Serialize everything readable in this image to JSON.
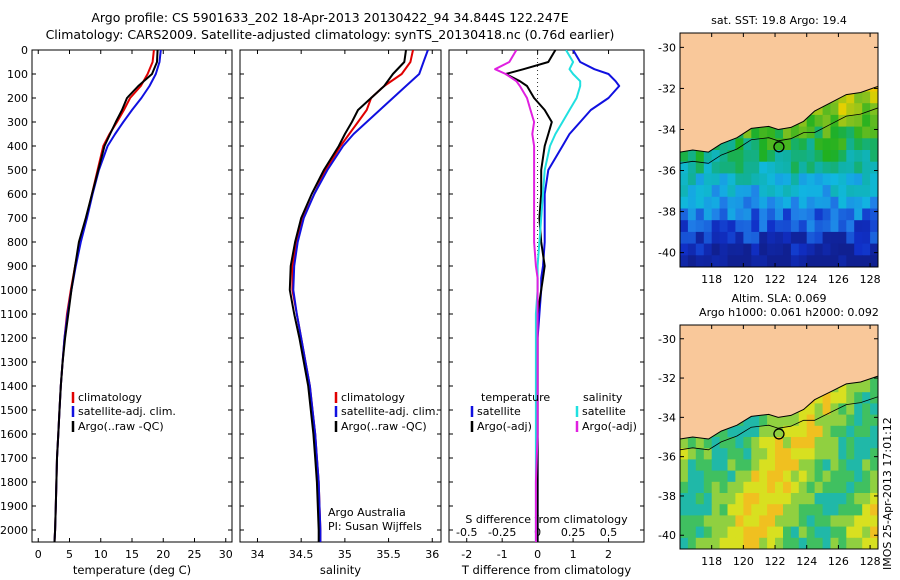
{
  "header": {
    "line1": "Argo profile: CS 5901633_202 18-Apr-2013 20130422_94 34.844S 122.247E",
    "line2": "Climatology: CARS2009. Satellite-adjusted climatology: synTS_20130418.nc (0.76d earlier)"
  },
  "colors": {
    "climatology": "#e00000",
    "satellite": "#1010e0",
    "argo": "#000000",
    "sat_s": "#20e0e0",
    "argo_s": "#e020e0",
    "land": "#f9c89a"
  },
  "legend_profile": {
    "climatology": "climatology",
    "satellite": "satellite-adj. clim.",
    "argo": "Argo(..raw -QC)"
  },
  "legend_diff": {
    "temperature": "temperature",
    "salinity": "salinity",
    "satellite": "satellite",
    "argo": "Argo(-adj)"
  },
  "annotations": {
    "argo_australia": "Argo Australia",
    "pi": "PI: Susan Wijffels",
    "sst_title": "sat. SST: 19.8  Argo: 19.4",
    "sla_line1": "Altim. SLA: 0.069",
    "sla_line2": "Argo h1000: 0.061 h2000: 0.092",
    "stamp": "IMOS 25-Apr-2013 17:01:12"
  },
  "chart_data": [
    {
      "type": "line",
      "xlabel": "temperature (deg C)",
      "xlim": [
        -1,
        31
      ],
      "ylim": [
        2050,
        0
      ],
      "xticks": [
        0,
        5,
        10,
        15,
        20,
        25,
        30
      ],
      "yticks": [
        0,
        100,
        200,
        300,
        400,
        500,
        600,
        700,
        800,
        900,
        1000,
        1100,
        1200,
        1300,
        1400,
        1500,
        1600,
        1700,
        1800,
        1900,
        2000
      ],
      "depth": [
        0,
        50,
        100,
        150,
        200,
        250,
        300,
        350,
        400,
        500,
        600,
        700,
        800,
        900,
        1000,
        1100,
        1200,
        1300,
        1400,
        1500,
        1600,
        1700,
        1800,
        1900,
        2000,
        2050
      ],
      "series": [
        {
          "name": "climatology",
          "key": "climatology",
          "values": [
            18.5,
            18.3,
            17.5,
            16.4,
            14.7,
            13.7,
            12.6,
            11.4,
            10.4,
            9.5,
            8.6,
            7.7,
            6.7,
            5.9,
            5.2,
            4.6,
            4.2,
            3.9,
            3.6,
            3.4,
            3.2,
            3.0,
            2.9,
            2.8,
            2.7,
            2.6
          ]
        },
        {
          "name": "satellite-adj. clim.",
          "key": "satellite",
          "values": [
            19.6,
            19.4,
            18.8,
            17.8,
            16.5,
            15.0,
            13.6,
            12.3,
            11.1,
            9.7,
            8.7,
            7.8,
            6.8,
            6.0,
            5.3,
            4.7,
            4.2,
            3.9,
            3.6,
            3.4,
            3.2,
            3.0,
            2.9,
            2.8,
            2.7,
            2.6
          ]
        },
        {
          "name": "Argo(..raw -QC)",
          "key": "argo",
          "values": [
            19.1,
            19.0,
            18.2,
            16.0,
            14.2,
            13.4,
            12.4,
            11.5,
            10.6,
            9.6,
            8.6,
            7.6,
            6.5,
            5.9,
            5.3,
            4.8,
            4.3,
            3.9,
            3.6,
            3.4,
            3.2,
            3.0,
            2.9,
            2.8,
            2.7,
            2.6
          ]
        }
      ]
    },
    {
      "type": "line",
      "xlabel": "salinity",
      "xlim": [
        33.8,
        36.1
      ],
      "ylim": [
        2050,
        0
      ],
      "xticks": [
        34,
        34.5,
        35,
        35.5,
        36
      ],
      "depth": [
        0,
        50,
        100,
        150,
        200,
        250,
        300,
        350,
        400,
        500,
        600,
        700,
        800,
        900,
        1000,
        1100,
        1200,
        1300,
        1400,
        1500,
        1600,
        1700,
        1800,
        1900,
        2000,
        2050
      ],
      "series": [
        {
          "name": "climatology",
          "key": "climatology",
          "values": [
            35.78,
            35.75,
            35.65,
            35.45,
            35.3,
            35.25,
            35.15,
            35.05,
            34.95,
            34.78,
            34.65,
            34.52,
            34.45,
            34.4,
            34.4,
            34.45,
            34.5,
            34.55,
            34.6,
            34.63,
            34.66,
            34.68,
            34.7,
            34.71,
            34.72,
            34.72
          ]
        },
        {
          "name": "satellite-adj. clim.",
          "key": "satellite",
          "values": [
            35.95,
            35.9,
            35.85,
            35.7,
            35.55,
            35.4,
            35.25,
            35.1,
            34.98,
            34.8,
            34.65,
            34.53,
            34.46,
            34.42,
            34.41,
            34.45,
            34.5,
            34.55,
            34.6,
            34.63,
            34.66,
            34.68,
            34.7,
            34.71,
            34.72,
            34.72
          ]
        },
        {
          "name": "Argo(..raw -QC)",
          "key": "argo",
          "values": [
            35.7,
            35.68,
            35.55,
            35.45,
            35.3,
            35.15,
            35.08,
            35.0,
            34.93,
            34.76,
            34.62,
            34.5,
            34.43,
            34.38,
            34.37,
            34.42,
            34.48,
            34.53,
            34.58,
            34.61,
            34.64,
            34.66,
            34.68,
            34.69,
            34.7,
            34.7
          ]
        }
      ]
    },
    {
      "type": "line",
      "xlabel": "T difference from climatology",
      "x2label": "S difference from climatology",
      "xlim": [
        -2.5,
        3
      ],
      "ylim": [
        2050,
        0
      ],
      "xticks": [
        -2,
        -1,
        0,
        1,
        2
      ],
      "x2ticks": [
        -0.5,
        -0.25,
        0,
        0.25,
        0.5
      ],
      "depth": [
        0,
        50,
        80,
        100,
        130,
        150,
        200,
        250,
        300,
        350,
        400,
        500,
        600,
        700,
        800,
        900,
        950,
        1000,
        1100,
        1200,
        1400,
        1600,
        1800,
        1900,
        2000,
        2050
      ],
      "series": [
        {
          "name": "satellite",
          "key": "satellite",
          "values": [
            1.0,
            1.2,
            1.6,
            2.0,
            2.2,
            2.3,
            2.0,
            1.5,
            1.2,
            0.9,
            0.7,
            0.3,
            0.2,
            0.2,
            0.2,
            0.15,
            0.1,
            0.1,
            0.05,
            0.0,
            0.0,
            0.0,
            0.0,
            0.0,
            0.0,
            0.0
          ]
        },
        {
          "name": "Argo(-adj)",
          "key": "argo",
          "values": [
            0.5,
            0.3,
            -0.4,
            -0.9,
            -0.5,
            -0.3,
            -0.1,
            0.2,
            0.4,
            0.3,
            0.2,
            0.1,
            0.1,
            0.05,
            0.1,
            0.2,
            0.15,
            0.1,
            0.0,
            0.0,
            0.0,
            0.0,
            0.0,
            0.0,
            0.0,
            0.0
          ]
        },
        {
          "name": "satellite",
          "key": "sat_s",
          "values": [
            0.8,
            1.0,
            0.9,
            1.0,
            1.2,
            1.2,
            1.1,
            0.9,
            0.7,
            0.5,
            0.35,
            0.2,
            0.15,
            0.1,
            0.05,
            0.0,
            0.0,
            0.0,
            -0.05,
            -0.05,
            -0.05,
            -0.05,
            -0.05,
            -0.05,
            -0.05,
            -0.05
          ]
        },
        {
          "name": "Argo(-adj)",
          "key": "argo_s",
          "values": [
            -0.6,
            -0.8,
            -1.2,
            -0.9,
            -0.6,
            -0.5,
            -0.3,
            -0.2,
            -0.1,
            -0.15,
            -0.1,
            -0.1,
            -0.1,
            -0.1,
            -0.1,
            -0.05,
            0.0,
            0.0,
            0.0,
            0.0,
            0.0,
            0.0,
            -0.05,
            -0.05,
            -0.05,
            -0.05
          ]
        }
      ]
    },
    {
      "type": "heatmap",
      "title": "sat. SST: 19.8  Argo: 19.4",
      "xlim": [
        116,
        128.5
      ],
      "ylim": [
        -40.7,
        -29.3
      ],
      "xticks": [
        118,
        120,
        122,
        124,
        126,
        128
      ],
      "yticks": [
        -30,
        -32,
        -34,
        -36,
        -38,
        -40
      ],
      "marker": {
        "lon": 122.247,
        "lat": -34.844
      }
    },
    {
      "type": "heatmap",
      "title": "Altim. SLA: 0.069",
      "xlim": [
        116,
        128.5
      ],
      "ylim": [
        -40.7,
        -29.3
      ],
      "xticks": [
        118,
        120,
        122,
        124,
        126,
        128
      ],
      "yticks": [
        -30,
        -32,
        -34,
        -36,
        -38,
        -40
      ],
      "marker": {
        "lon": 122.247,
        "lat": -34.844
      }
    }
  ]
}
